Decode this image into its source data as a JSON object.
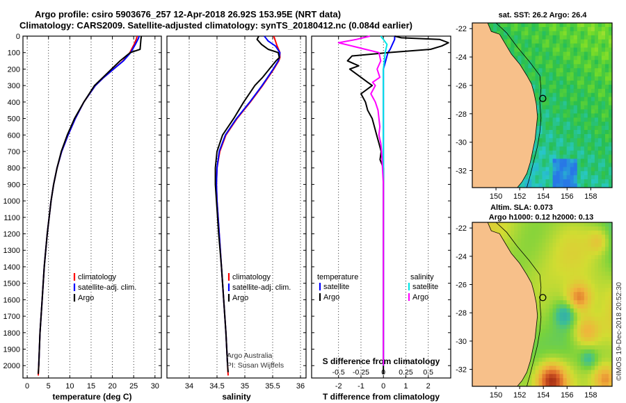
{
  "title": {
    "line1": "Argo profile: csiro 5903676_257 12-Apr-2018 26.92S 153.95E (NRT data)",
    "line2": "Climatology: CARS2009. Satellite-adjusted climatology: synTS_20180412.nc (0.084d earlier)"
  },
  "colors": {
    "climatology": "#ff0000",
    "satellite": "#0000ff",
    "argo": "#000000",
    "satellite_s": "#00e5e5",
    "argo_s": "#ff00ff",
    "land": "#f7c08a"
  },
  "depth_axis": {
    "ticks": [
      0,
      100,
      200,
      300,
      400,
      500,
      600,
      700,
      800,
      900,
      1000,
      1100,
      1200,
      1300,
      1400,
      1500,
      1600,
      1700,
      1800,
      1900,
      2000
    ],
    "labels": [
      "0",
      "100",
      "200",
      "300",
      "400",
      "500",
      "600",
      "700",
      "800",
      "900",
      "1000",
      "1100",
      "1200",
      "1300",
      "1400",
      "1500",
      "1600",
      "1700",
      "1800",
      "1900",
      "2000"
    ],
    "range": [
      0,
      2075
    ]
  },
  "chart_data": [
    {
      "type": "line",
      "name": "temperature",
      "xlabel": "temperature (deg C)",
      "xlim": [
        -1,
        31.5
      ],
      "xticks": [
        0,
        5,
        10,
        15,
        20,
        25,
        30
      ],
      "xticklabels": [
        "0",
        "5",
        "10",
        "15",
        "20",
        "25",
        "30"
      ],
      "legend": [
        "climatology",
        "satellite-adj. clim.",
        "Argo"
      ],
      "series": [
        {
          "name": "climatology",
          "color_key": "climatology",
          "depth": [
            0,
            20,
            50,
            100,
            150,
            200,
            250,
            300,
            400,
            500,
            600,
            700,
            800,
            900,
            1000,
            1200,
            1400,
            1600,
            1800,
            2000,
            2060
          ],
          "values": [
            25.8,
            25.6,
            25.1,
            24.1,
            22.5,
            20.3,
            18.0,
            16.0,
            13.3,
            11.3,
            9.6,
            8.1,
            7.0,
            6.2,
            5.6,
            4.7,
            4.0,
            3.5,
            3.0,
            2.7,
            2.6
          ]
        },
        {
          "name": "satellite-adj. clim.",
          "color_key": "satellite",
          "depth": [
            0,
            20,
            50,
            100,
            150,
            200,
            250,
            300,
            400,
            500,
            600,
            700,
            800,
            900,
            1000,
            1200,
            1400,
            1600,
            1800,
            2000
          ],
          "values": [
            26.3,
            26.0,
            25.4,
            24.3,
            22.6,
            20.3,
            18.0,
            16.0,
            13.3,
            11.3,
            9.6,
            8.1,
            7.0,
            6.2,
            5.6,
            4.7,
            4.0,
            3.5,
            3.0,
            2.7
          ]
        },
        {
          "name": "Argo",
          "color_key": "argo",
          "depth": [
            0,
            20,
            50,
            80,
            100,
            150,
            200,
            250,
            300,
            400,
            500,
            600,
            700,
            800,
            900,
            1000,
            1200,
            1400,
            1600,
            1800,
            2000,
            2050
          ],
          "values": [
            26.8,
            26.7,
            26.6,
            26.5,
            24.2,
            21.8,
            19.8,
            17.8,
            15.8,
            13.3,
            11.1,
            9.4,
            8.0,
            7.0,
            6.2,
            5.6,
            4.7,
            4.0,
            3.5,
            3.0,
            2.7,
            2.6
          ]
        }
      ]
    },
    {
      "type": "line",
      "name": "salinity",
      "xlabel": "salinity",
      "xlim": [
        33.6,
        36.1
      ],
      "xticks": [
        34,
        34.5,
        35,
        35.5,
        36
      ],
      "xticklabels": [
        "34",
        "34.5",
        "35",
        "35.5",
        "36"
      ],
      "legend": [
        "climatology",
        "satellite-adj. clim.",
        "Argo"
      ],
      "series": [
        {
          "name": "climatology",
          "color_key": "climatology",
          "depth": [
            0,
            30,
            60,
            100,
            130,
            150,
            200,
            250,
            300,
            400,
            500,
            600,
            700,
            800,
            900,
            1000,
            1200,
            1400,
            1600,
            1800,
            2000,
            2060
          ],
          "values": [
            35.52,
            35.55,
            35.58,
            35.63,
            35.63,
            35.61,
            35.52,
            35.42,
            35.32,
            35.1,
            34.86,
            34.66,
            34.55,
            34.5,
            34.49,
            34.5,
            34.54,
            34.58,
            34.62,
            34.66,
            34.69,
            34.7
          ]
        },
        {
          "name": "satellite-adj. clim.",
          "color_key": "satellite",
          "depth": [
            0,
            30,
            60,
            100,
            130,
            150,
            200,
            250,
            300,
            400,
            500,
            600,
            700,
            800,
            900,
            1000,
            1200,
            1400,
            1600,
            1800,
            2000
          ],
          "values": [
            35.35,
            35.42,
            35.55,
            35.63,
            35.62,
            35.6,
            35.51,
            35.41,
            35.31,
            35.09,
            34.85,
            34.65,
            34.54,
            34.5,
            34.49,
            34.5,
            34.54,
            34.58,
            34.62,
            34.66,
            34.69
          ]
        },
        {
          "name": "Argo",
          "color_key": "argo",
          "depth": [
            0,
            20,
            50,
            80,
            100,
            130,
            150,
            200,
            250,
            300,
            400,
            500,
            600,
            700,
            800,
            900,
            1000,
            1200,
            1400,
            1600,
            1800,
            2000,
            2040
          ],
          "values": [
            35.25,
            35.22,
            35.3,
            35.42,
            35.6,
            35.62,
            35.56,
            35.44,
            35.32,
            35.18,
            34.98,
            34.8,
            34.6,
            34.5,
            34.47,
            34.47,
            34.49,
            34.53,
            34.58,
            34.62,
            34.66,
            34.69,
            34.7
          ]
        }
      ]
    },
    {
      "type": "line",
      "name": "difference",
      "xlabel": "T difference from climatology",
      "xlim": [
        -3.2,
        3.0
      ],
      "xticks": [
        -2,
        -1,
        0,
        1,
        2
      ],
      "xticklabels": [
        "-2",
        "-1",
        "0",
        "1",
        "2"
      ],
      "s_label": "S difference from climatology",
      "s_xlim": [
        -0.8,
        0.75
      ],
      "s_xticks": [
        -0.5,
        -0.25,
        0,
        0.25,
        0.5
      ],
      "s_xticklabels": [
        "-0.5",
        "-0.25",
        "0",
        "0.25",
        "0.5"
      ],
      "legend_t_title": "temperature",
      "legend_s_title": "salinity",
      "legend_t": [
        "satellite",
        "Argo"
      ],
      "legend_s": [
        "satellite",
        "Argo"
      ],
      "series": [
        {
          "name": "T satellite",
          "color_key": "satellite",
          "axis": "t",
          "depth": [
            0,
            20,
            50,
            80,
            100,
            150,
            200,
            300,
            400,
            600,
            800,
            1000,
            1500,
            2000
          ],
          "values": [
            0.5,
            0.5,
            0.4,
            0.3,
            0.2,
            0.1,
            0.0,
            0.0,
            0.0,
            0.0,
            0.0,
            0.0,
            0.0,
            0.0
          ]
        },
        {
          "name": "T Argo",
          "color_key": "argo",
          "axis": "t",
          "depth": [
            0,
            10,
            20,
            40,
            60,
            80,
            100,
            120,
            150,
            180,
            200,
            250,
            280,
            300,
            350,
            400,
            450,
            500,
            550,
            600,
            650,
            700,
            750,
            800,
            850,
            900,
            950,
            1000,
            1100,
            1200,
            1300,
            1400,
            1500,
            1600,
            1700,
            1800,
            1900,
            2000,
            2050
          ],
          "values": [
            0.5,
            0.8,
            2.5,
            2.9,
            2.6,
            2.1,
            0.2,
            -1.4,
            -1.6,
            -1.1,
            -1.5,
            -1.0,
            -0.7,
            -0.5,
            -1.0,
            -0.8,
            -0.7,
            -0.5,
            -0.4,
            -0.3,
            -0.2,
            -0.1,
            -0.15,
            0.0,
            0.0,
            0.0,
            0.0,
            0.0,
            0.0,
            0.0,
            0.0,
            0.0,
            0.0,
            0.0,
            0.0,
            0.0,
            0.0,
            0.0,
            0.0
          ]
        },
        {
          "name": "S satellite",
          "color_key": "satellite_s",
          "axis": "s",
          "depth": [
            0,
            20,
            50,
            100,
            150,
            200,
            300,
            400,
            600,
            800,
            1000,
            1500,
            2000
          ],
          "values": [
            -0.03,
            0.0,
            0.04,
            0.02,
            0.01,
            0.0,
            0.0,
            0.0,
            0.0,
            0.0,
            0.0,
            0.0,
            0.0
          ]
        },
        {
          "name": "S Argo",
          "color_key": "argo_s",
          "axis": "s",
          "depth": [
            0,
            20,
            40,
            60,
            80,
            100,
            150,
            200,
            250,
            280,
            300,
            350,
            400,
            450,
            500,
            550,
            600,
            650,
            700,
            800,
            900,
            1000,
            1200,
            1400,
            1600,
            1800,
            2000
          ],
          "values": [
            -0.15,
            -0.3,
            -0.5,
            -0.35,
            -0.2,
            -0.05,
            -0.03,
            -0.07,
            -0.04,
            -0.12,
            -0.09,
            -0.14,
            -0.09,
            -0.06,
            -0.05,
            -0.04,
            -0.05,
            -0.03,
            -0.02,
            -0.01,
            0.0,
            0.0,
            0.0,
            0.0,
            0.0,
            0.0,
            0.0
          ]
        }
      ]
    },
    {
      "type": "heatmap",
      "name": "sst-map",
      "title": "sat. SST: 26.2 Argo: 26.4",
      "lon_range": [
        148.0,
        159.8
      ],
      "lat_range": [
        -33.2,
        -21.6
      ],
      "xticks": [
        150,
        152,
        154,
        156,
        158
      ],
      "xticklabels": [
        "150",
        "152",
        "154",
        "156",
        "158"
      ],
      "yticks": [
        -22,
        -24,
        -26,
        -28,
        -30,
        -32
      ],
      "yticklabels": [
        "-22",
        "-24",
        "-26",
        "-28",
        "-30",
        "-32"
      ],
      "float_position": {
        "lon": 153.95,
        "lat": -26.92
      }
    },
    {
      "type": "heatmap",
      "name": "sla-map",
      "title_line1": "Altim. SLA: 0.073",
      "title_line2": "Argo h1000: 0.12 h2000: 0.13",
      "lon_range": [
        148.0,
        159.8
      ],
      "lat_range": [
        -33.2,
        -21.6
      ],
      "xticks": [
        150,
        152,
        154,
        156,
        158
      ],
      "xticklabels": [
        "150",
        "152",
        "154",
        "156",
        "158"
      ],
      "yticks": [
        -22,
        -24,
        -26,
        -28,
        -30,
        -32
      ],
      "yticklabels": [
        "-22",
        "-24",
        "-26",
        "-28",
        "-30",
        "-32"
      ],
      "float_position": {
        "lon": 153.95,
        "lat": -26.92
      }
    }
  ],
  "credits": {
    "line1": "Argo Australia",
    "line2": "PI: Susan Wijffels",
    "side": "©IMOS 19-Dec-2018 20:52:30"
  }
}
